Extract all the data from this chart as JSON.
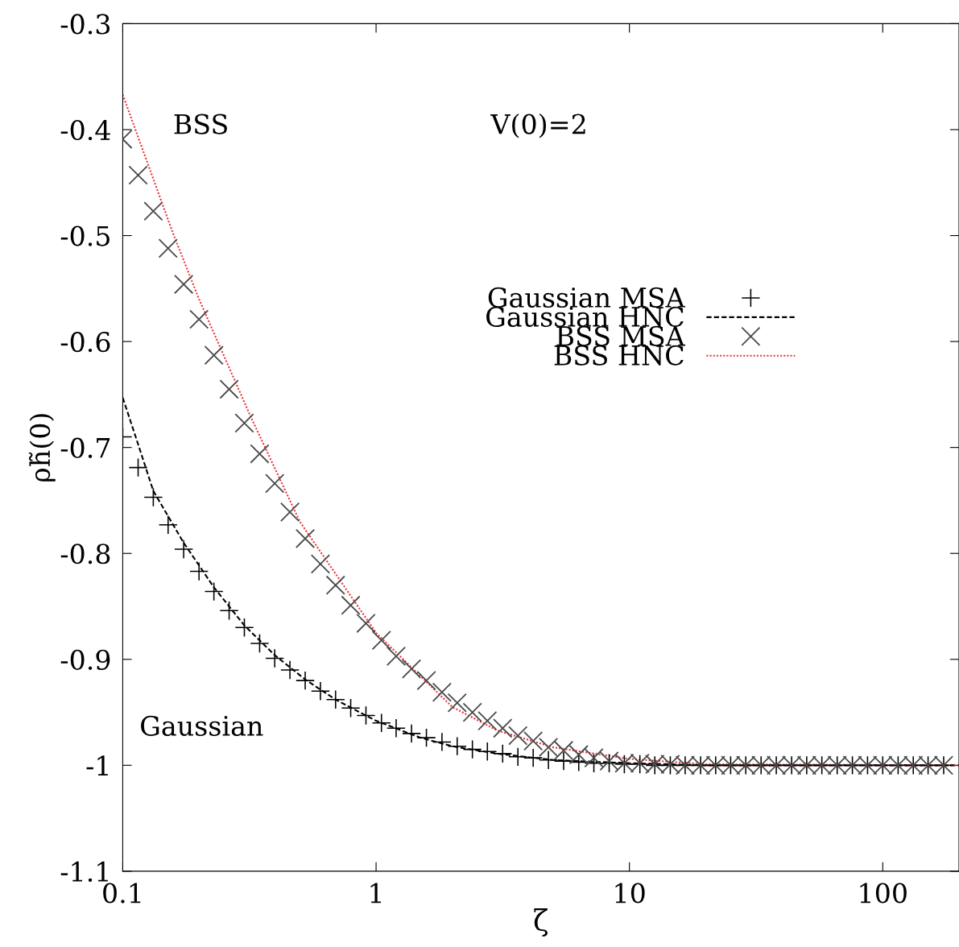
{
  "chart_data": {
    "type": "scatter",
    "xlabel": "ζ",
    "ylabel": "ρh̃(0)",
    "log": "x",
    "xlim": [
      0.1,
      200
    ],
    "xticks": [
      0.1,
      1,
      10,
      100
    ],
    "ylim": [
      -1.1,
      -0.3
    ],
    "yticks": [
      -1.1,
      -1,
      -0.9,
      -0.8,
      -0.7,
      -0.6,
      -0.5,
      -0.4,
      -0.3
    ],
    "grid": false,
    "legend": "right",
    "annotations": [
      "BSS",
      "V(0)=2",
      "Gaussian"
    ],
    "x": [
      0.1,
      0.115,
      0.132,
      0.151,
      0.174,
      0.2,
      0.229,
      0.263,
      0.302,
      0.347,
      0.398,
      0.457,
      0.525,
      0.603,
      0.692,
      0.794,
      0.912,
      1.05,
      1.2,
      1.38,
      1.58,
      1.82,
      2.09,
      2.4,
      2.75,
      3.16,
      3.63,
      4.17,
      4.79,
      5.5,
      6.31,
      7.24,
      8.32,
      9.55,
      11,
      12.6,
      14.5,
      16.6,
      19.1,
      21.9,
      25.1,
      28.8,
      33.1,
      38,
      43.7,
      50.1,
      57.5,
      66.1,
      75.9,
      87.1,
      100,
      115,
      132,
      151,
      174
    ],
    "series": [
      {
        "name": "Gaussian MSA",
        "color": "#000000",
        "values": [
          -0.69,
          -0.719,
          -0.747,
          -0.773,
          -0.796,
          -0.817,
          -0.836,
          -0.854,
          -0.87,
          -0.885,
          -0.899,
          -0.91,
          -0.92,
          -0.93,
          -0.938,
          -0.946,
          -0.953,
          -0.96,
          -0.965,
          -0.97,
          -0.974,
          -0.978,
          -0.982,
          -0.985,
          -0.987,
          -0.989,
          -0.992,
          -0.993,
          -0.995,
          -0.996,
          -0.997,
          -0.998,
          -0.998,
          -0.999,
          -0.999,
          -1.0,
          -1.0,
          -1.0,
          -1.0,
          -1.0,
          -1.0,
          -1.0,
          -1.0,
          -1.0,
          -1.0,
          -1.0,
          -1.0,
          -1.0,
          -1.0,
          -1.0,
          -1.0,
          -1.0,
          -1.0,
          -1.0,
          -1.0
        ]
      },
      {
        "name": "Gaussian HNC",
        "type": "line",
        "line_style": "dashed",
        "color": "#000000",
        "x": [
          0.1,
          0.115,
          0.132,
          0.174,
          0.229,
          0.302,
          0.398,
          0.525,
          0.692,
          1,
          1.5,
          2,
          3,
          5,
          10,
          20,
          200
        ],
        "values": [
          -0.653,
          -0.697,
          -0.741,
          -0.79,
          -0.832,
          -0.868,
          -0.896,
          -0.919,
          -0.938,
          -0.958,
          -0.974,
          -0.982,
          -0.989,
          -0.995,
          -0.998,
          -1.0,
          -1.0
        ]
      },
      {
        "name": "BSS MSA",
        "marker": "cross",
        "color": "#4a4a4a",
        "values": [
          -0.409,
          -0.443,
          -0.477,
          -0.512,
          -0.546,
          -0.579,
          -0.613,
          -0.645,
          -0.677,
          -0.706,
          -0.734,
          -0.761,
          -0.786,
          -0.81,
          -0.83,
          -0.849,
          -0.866,
          -0.882,
          -0.897,
          -0.909,
          -0.92,
          -0.931,
          -0.941,
          -0.95,
          -0.958,
          -0.965,
          -0.972,
          -0.977,
          -0.983,
          -0.986,
          -0.99,
          -0.993,
          -0.996,
          -0.998,
          -0.998,
          -0.999,
          -0.999,
          -1.0,
          -1.0,
          -1.0,
          -1.0,
          -1.0,
          -1.0,
          -1.0,
          -1.0,
          -1.0,
          -1.0,
          -1.0,
          -1.0,
          -1.0,
          -1.0,
          -1.0,
          -1.0,
          -1.0,
          -1.0
        ]
      },
      {
        "name": "BSS HNC",
        "type": "line",
        "line_style": "dotted",
        "color": "#e8363a",
        "x": [
          0.1,
          0.158,
          0.2,
          0.32,
          0.5,
          1,
          2,
          3,
          5,
          10,
          20,
          200
        ],
        "values": [
          -0.367,
          -0.498,
          -0.56,
          -0.671,
          -0.77,
          -0.875,
          -0.945,
          -0.967,
          -0.983,
          -0.994,
          -0.999,
          -1.0
        ]
      }
    ]
  }
}
